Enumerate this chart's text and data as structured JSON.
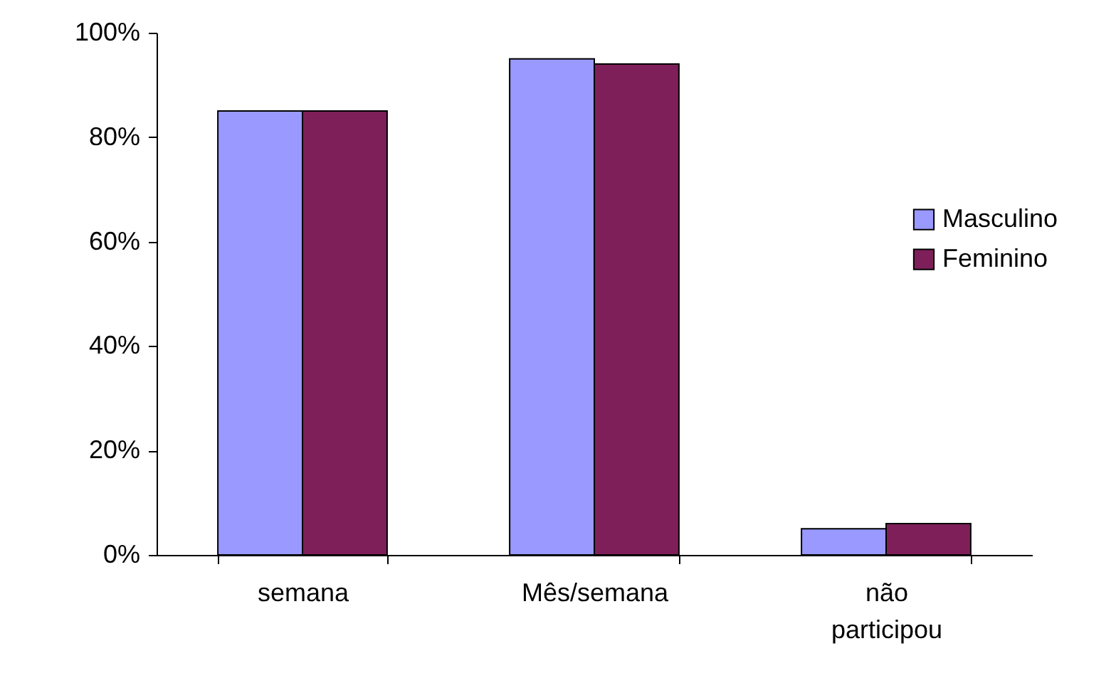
{
  "chart_data": {
    "type": "bar",
    "categories": [
      "semana",
      "Mês/semana",
      "não participou"
    ],
    "series": [
      {
        "name": "Masculino",
        "color": "#9999ff",
        "values": [
          85,
          95,
          5
        ]
      },
      {
        "name": "Feminino",
        "color": "#7f1f5a",
        "values": [
          85,
          94,
          6
        ]
      }
    ],
    "ylim": [
      0,
      100
    ],
    "yticks": [
      {
        "value": 0,
        "label": "0%"
      },
      {
        "value": 20,
        "label": "20%"
      },
      {
        "value": 40,
        "label": "40%"
      },
      {
        "value": 60,
        "label": "60%"
      },
      {
        "value": 80,
        "label": "80%"
      },
      {
        "value": 100,
        "label": "100%"
      }
    ],
    "grid": false,
    "legend": "right"
  }
}
